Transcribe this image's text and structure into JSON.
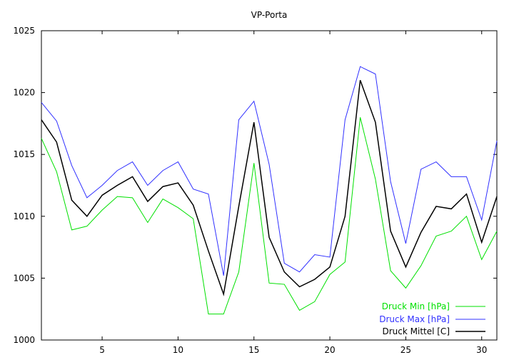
{
  "chart_data": {
    "type": "line",
    "title": "VP-Porta",
    "xlabel": "",
    "ylabel": "",
    "xlim": [
      1,
      31
    ],
    "ylim": [
      1000,
      1025
    ],
    "xticks": [
      5,
      10,
      15,
      20,
      25,
      30
    ],
    "yticks": [
      1000,
      1005,
      1010,
      1015,
      1020,
      1025
    ],
    "grid": false,
    "legend_position": "bottom-right",
    "x": [
      1,
      2,
      3,
      4,
      5,
      6,
      7,
      8,
      9,
      10,
      11,
      12,
      13,
      14,
      15,
      16,
      17,
      18,
      19,
      20,
      21,
      22,
      23,
      24,
      25,
      26,
      27,
      28,
      29,
      30,
      31
    ],
    "series": [
      {
        "name": "Druck Min [hPa]",
        "color": "#00e000",
        "values": [
          1016.3,
          1013.6,
          1008.9,
          1009.2,
          1010.5,
          1011.6,
          1011.5,
          1009.5,
          1011.4,
          1010.7,
          1009.8,
          1002.1,
          1002.1,
          1005.5,
          1014.3,
          1004.6,
          1004.5,
          1002.4,
          1003.1,
          1005.3,
          1006.3,
          1018.0,
          1013.0,
          1005.6,
          1004.2,
          1006.0,
          1008.4,
          1008.8,
          1010.0,
          1006.5,
          1008.8
        ]
      },
      {
        "name": "Druck Max [hPa]",
        "color": "#3030ff",
        "values": [
          1019.2,
          1017.7,
          1014.1,
          1011.5,
          1012.5,
          1013.7,
          1014.4,
          1012.5,
          1013.7,
          1014.4,
          1012.2,
          1011.8,
          1005.2,
          1017.8,
          1019.3,
          1014.2,
          1006.2,
          1005.5,
          1006.9,
          1006.7,
          1017.8,
          1022.1,
          1021.5,
          1012.8,
          1007.8,
          1013.8,
          1014.4,
          1013.2,
          1013.2,
          1009.7,
          1016.1
        ]
      },
      {
        "name": "Druck Mittel [C]",
        "color": "#000000",
        "values": [
          1017.8,
          1016.0,
          1011.3,
          1010.0,
          1011.7,
          1012.5,
          1013.2,
          1011.2,
          1012.4,
          1012.7,
          1010.9,
          1007.2,
          1003.7,
          1010.8,
          1017.6,
          1008.3,
          1005.5,
          1004.3,
          1004.9,
          1005.9,
          1010.0,
          1021.0,
          1017.6,
          1008.8,
          1005.9,
          1008.7,
          1010.8,
          1010.6,
          1011.8,
          1007.9,
          1011.6
        ]
      }
    ]
  }
}
